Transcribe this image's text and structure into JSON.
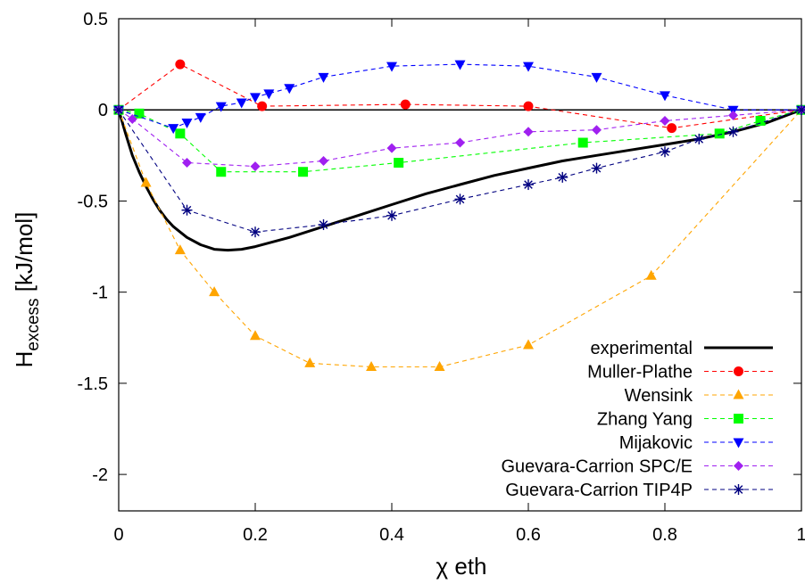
{
  "chart_data": {
    "type": "line",
    "xlabel": "χ eth",
    "ylabel": {
      "base": "H",
      "subscript": "excess",
      "unit": "[kJ/mol]"
    },
    "xlim": [
      0,
      1
    ],
    "ylim": [
      -2.2,
      0.5
    ],
    "x_ticks": [
      {
        "value": 0,
        "label": "0"
      },
      {
        "value": 0.2,
        "label": "0.2"
      },
      {
        "value": 0.4,
        "label": "0.4"
      },
      {
        "value": 0.6,
        "label": "0.6"
      },
      {
        "value": 0.8,
        "label": "0.8"
      },
      {
        "value": 1,
        "label": "1"
      }
    ],
    "y_ticks": [
      {
        "value": 0.5,
        "label": "0.5"
      },
      {
        "value": 0,
        "label": "0"
      },
      {
        "value": -0.5,
        "label": "-0.5"
      },
      {
        "value": -1,
        "label": "-1"
      },
      {
        "value": -1.5,
        "label": "-1.5"
      },
      {
        "value": -2,
        "label": "-2"
      }
    ],
    "zero_line": true,
    "grid": false,
    "legend_position": "bottom-right",
    "series": [
      {
        "name": "experimental",
        "color": "#000000",
        "style": "solid",
        "marker": "none",
        "x": [
          0,
          0.01,
          0.02,
          0.03,
          0.04,
          0.05,
          0.06,
          0.07,
          0.08,
          0.09,
          0.1,
          0.12,
          0.14,
          0.16,
          0.18,
          0.2,
          0.25,
          0.3,
          0.35,
          0.4,
          0.45,
          0.5,
          0.55,
          0.6,
          0.65,
          0.7,
          0.75,
          0.8,
          0.85,
          0.9,
          0.95,
          1.0
        ],
        "y": [
          0,
          -0.13,
          -0.25,
          -0.34,
          -0.42,
          -0.49,
          -0.55,
          -0.6,
          -0.64,
          -0.67,
          -0.7,
          -0.74,
          -0.765,
          -0.77,
          -0.765,
          -0.75,
          -0.7,
          -0.64,
          -0.58,
          -0.52,
          -0.46,
          -0.41,
          -0.36,
          -0.32,
          -0.28,
          -0.25,
          -0.22,
          -0.19,
          -0.16,
          -0.12,
          -0.07,
          0
        ]
      },
      {
        "name": "Muller-Plathe",
        "color": "#ff0000",
        "style": "dashed",
        "marker": "circle",
        "x": [
          0,
          0.09,
          0.21,
          0.42,
          0.6,
          0.81,
          1.0
        ],
        "y": [
          0,
          0.25,
          0.02,
          0.03,
          0.02,
          -0.1,
          0
        ]
      },
      {
        "name": "Wensink",
        "color": "#ffa500",
        "style": "dashed",
        "marker": "triangle",
        "x": [
          0,
          0.04,
          0.09,
          0.14,
          0.2,
          0.28,
          0.37,
          0.47,
          0.6,
          0.78,
          1.0
        ],
        "y": [
          0,
          -0.4,
          -0.77,
          -1.0,
          -1.24,
          -1.39,
          -1.41,
          -1.41,
          -1.29,
          -0.91,
          0
        ]
      },
      {
        "name": "Zhang Yang",
        "color": "#00ff00",
        "style": "dashed",
        "marker": "square",
        "x": [
          0,
          0.03,
          0.09,
          0.15,
          0.27,
          0.41,
          0.68,
          0.88,
          0.94,
          1.0
        ],
        "y": [
          0,
          -0.02,
          -0.13,
          -0.34,
          -0.34,
          -0.29,
          -0.18,
          -0.13,
          -0.06,
          0
        ]
      },
      {
        "name": "Mijakovic",
        "color": "#0000ff",
        "style": "dashed",
        "marker": "triangle-down",
        "x": [
          0,
          0.08,
          0.1,
          0.12,
          0.15,
          0.18,
          0.2,
          0.22,
          0.25,
          0.3,
          0.4,
          0.5,
          0.6,
          0.7,
          0.8,
          0.9,
          1.0
        ],
        "y": [
          0,
          -0.1,
          -0.07,
          -0.04,
          0.02,
          0.04,
          0.07,
          0.09,
          0.12,
          0.18,
          0.24,
          0.25,
          0.24,
          0.18,
          0.08,
          0,
          0
        ]
      },
      {
        "name": "Guevara-Carrion SPC/E",
        "color": "#a020f0",
        "style": "dashed",
        "marker": "diamond",
        "x": [
          0,
          0.02,
          0.1,
          0.2,
          0.3,
          0.4,
          0.5,
          0.6,
          0.7,
          0.8,
          0.9,
          1.0
        ],
        "y": [
          0,
          -0.05,
          -0.29,
          -0.31,
          -0.28,
          -0.21,
          -0.18,
          -0.12,
          -0.11,
          -0.06,
          -0.03,
          0
        ]
      },
      {
        "name": "Guevara-Carrion TIP4P",
        "color": "#000080",
        "style": "dashed",
        "marker": "asterisk",
        "x": [
          0,
          0.1,
          0.2,
          0.3,
          0.4,
          0.5,
          0.6,
          0.65,
          0.7,
          0.8,
          0.85,
          0.9,
          1.0
        ],
        "y": [
          0,
          -0.55,
          -0.67,
          -0.63,
          -0.58,
          -0.49,
          -0.41,
          -0.37,
          -0.32,
          -0.23,
          -0.16,
          -0.12,
          0
        ]
      }
    ]
  }
}
